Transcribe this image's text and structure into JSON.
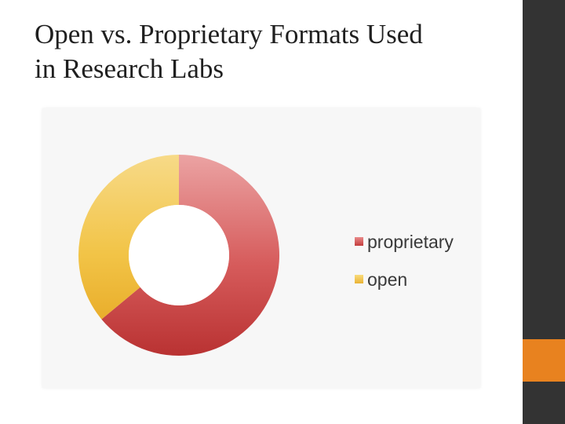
{
  "slide": {
    "title": "Open vs. Proprietary Formats Used\nin Research Labs"
  },
  "theme": {
    "side_bar_color": "#333333",
    "accent_color": "#e8821f"
  },
  "chart_data": {
    "type": "pie",
    "variant": "donut",
    "categories": [
      "proprietary",
      "open"
    ],
    "values": [
      64,
      36
    ],
    "unit": "%",
    "colors": [
      "#d9534f",
      "#f4c542"
    ],
    "legend": {
      "position": "right",
      "entries": [
        "proprietary",
        "open"
      ]
    },
    "title": "",
    "data_labels": false
  }
}
